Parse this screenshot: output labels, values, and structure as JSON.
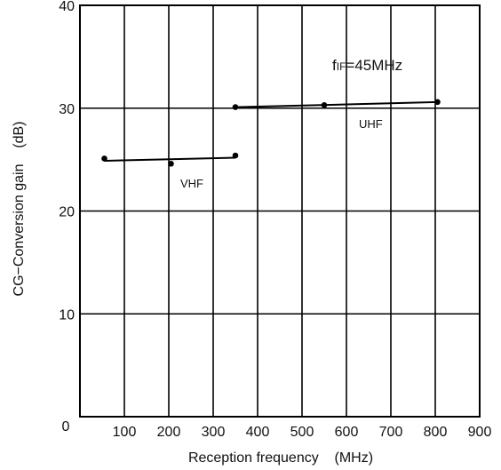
{
  "chart_data": {
    "type": "line",
    "title": "",
    "xlabel": "Reception frequency    (MHz)",
    "ylabel": "CG−Conversion gain    (dB)",
    "xlim": [
      0,
      900
    ],
    "ylim": [
      0,
      40
    ],
    "x_ticks": [
      100,
      200,
      300,
      400,
      500,
      600,
      700,
      800,
      900
    ],
    "y_ticks": [
      10,
      20,
      30,
      40
    ],
    "origin_label": "0",
    "grid": true,
    "annotation": "fIF=45MHz",
    "series": [
      {
        "name": "VHF",
        "x": [
          55,
          205,
          350
        ],
        "y": [
          25.1,
          24.6,
          25.4
        ]
      },
      {
        "name": "UHF",
        "x": [
          350,
          550,
          805
        ],
        "y": [
          30.1,
          30.3,
          30.6
        ]
      }
    ]
  }
}
